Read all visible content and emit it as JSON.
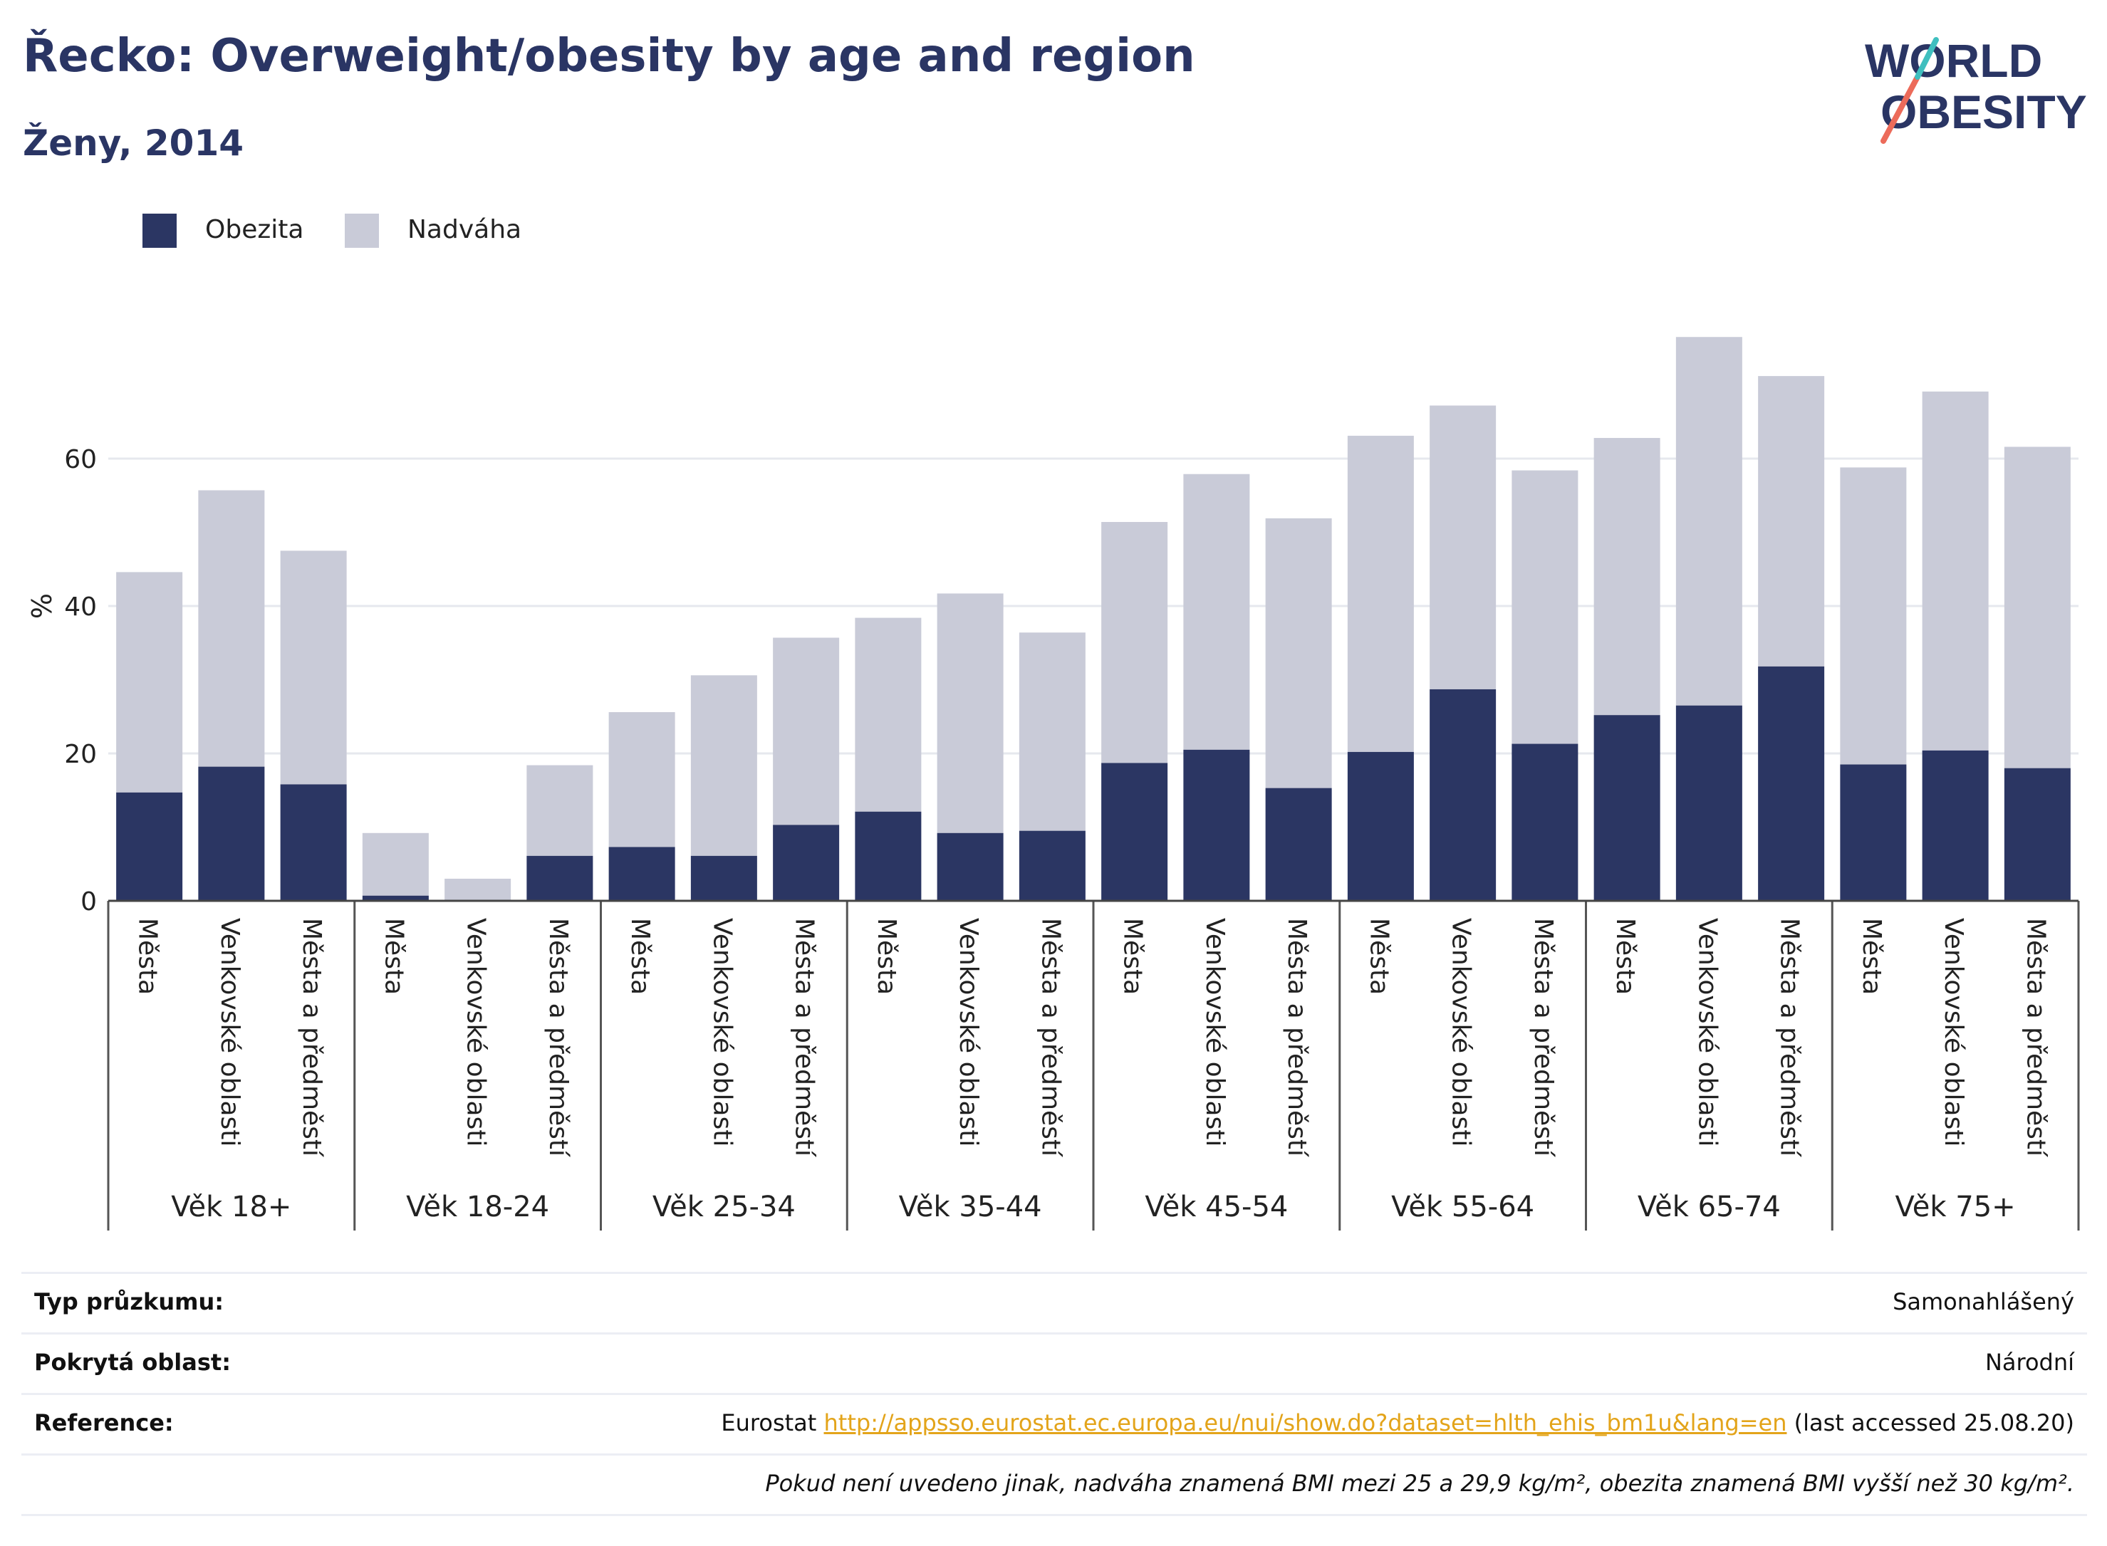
{
  "title": "Řecko: Overweight/obesity by age and region",
  "subtitle": "Ženy, 2014",
  "logo": {
    "line1": "WORLD",
    "line2": "OBESITY"
  },
  "colors": {
    "obesity": "#2b3663",
    "overweight": "#c9cbd8",
    "title": "#2a3564",
    "link": "#e3a41a"
  },
  "legend": [
    {
      "label": "Obezita",
      "color": "#2b3663"
    },
    {
      "label": "Nadváha",
      "color": "#c9cbd8"
    }
  ],
  "chart_data": {
    "type": "bar",
    "stacked": true,
    "ylabel": "%",
    "ylim": [
      0,
      80
    ],
    "yticks": [
      0,
      20,
      40,
      60
    ],
    "grid": true,
    "legend_position": "top-left",
    "groups": [
      "Věk 18+",
      "Věk 18-24",
      "Věk 25-34",
      "Věk 35-44",
      "Věk 45-54",
      "Věk 55-64",
      "Věk 65-74",
      "Věk 75+"
    ],
    "categories": [
      "Města",
      "Venkovské oblasti",
      "Města a předměstí"
    ],
    "series": [
      {
        "name": "Obezita",
        "values": [
          [
            14.7,
            18.2,
            15.8
          ],
          [
            0.7,
            0.0,
            6.1
          ],
          [
            7.3,
            6.1,
            10.3
          ],
          [
            12.1,
            9.2,
            9.5
          ],
          [
            18.7,
            20.5,
            15.3
          ],
          [
            20.2,
            28.7,
            21.3
          ],
          [
            25.2,
            26.5,
            31.8
          ],
          [
            18.5,
            20.4,
            18.0
          ]
        ]
      },
      {
        "name": "Nadváha",
        "values": [
          [
            29.9,
            37.5,
            31.7
          ],
          [
            8.5,
            3.0,
            12.3
          ],
          [
            18.3,
            24.5,
            25.4
          ],
          [
            26.3,
            32.5,
            26.9
          ],
          [
            32.7,
            37.4,
            36.6
          ],
          [
            42.9,
            38.5,
            37.1
          ],
          [
            37.6,
            50.0,
            39.4
          ],
          [
            40.3,
            48.7,
            43.6
          ]
        ]
      }
    ]
  },
  "meta": [
    {
      "key": "Typ průzkumu:",
      "value": "Samonahlášený"
    },
    {
      "key": "Pokrytá oblast:",
      "value": "Národní"
    },
    {
      "key": "Reference:",
      "prefix": "Eurostat ",
      "link": "http://appsso.eurostat.ec.europa.eu/nui/show.do?dataset=hlth_ehis_bm1u&lang=en",
      "suffix": " (last accessed 25.08.20)"
    }
  ],
  "note": "Pokud není uvedeno jinak, nadváha znamená BMI mezi 25 a 29,9 kg/m², obezita znamená BMI vyšší než 30 kg/m²."
}
